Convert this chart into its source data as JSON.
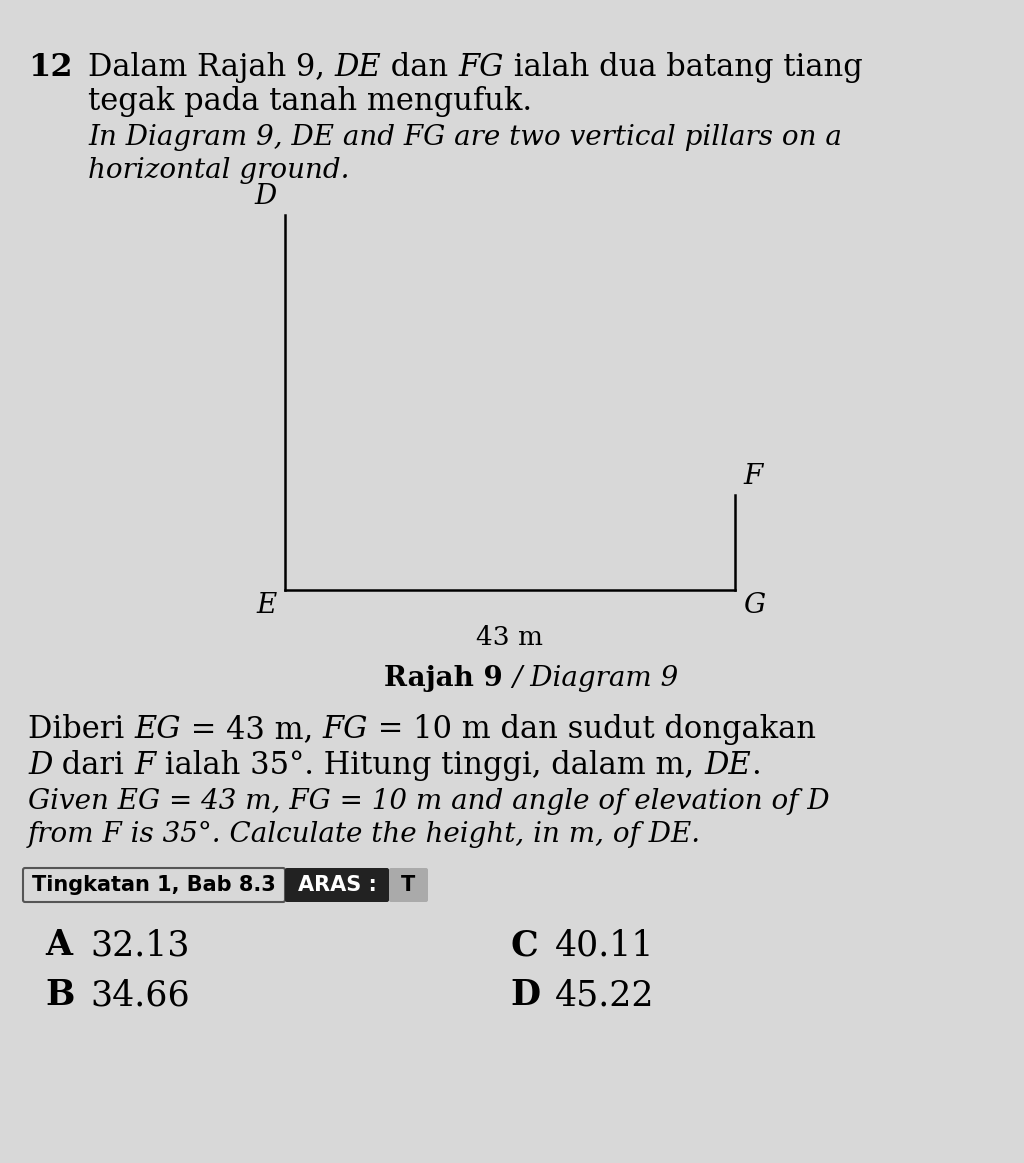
{
  "bg_color": "#d8d8d8",
  "question_number": "12",
  "line1_normal1": "Dalam Rajah 9, ",
  "line1_italic1": "DE",
  "line1_normal2": " dan ",
  "line1_italic2": "FG",
  "line1_normal3": " ialah dua batang tiang",
  "line2_normal": "tegak pada tanah mengufuk.",
  "line3_italic": "In Diagram 9, DE and FG are two vertical pillars on a",
  "line4_italic": "horizontal ground.",
  "diagram_label_D": "D",
  "diagram_label_E": "E",
  "diagram_label_F": "F",
  "diagram_label_G": "G",
  "diagram_label_43m": "43 m",
  "diagram_title": "Rajah 9",
  "diagram_title2": "/ Diagram 9",
  "given_malay_normal1": "Diberi ",
  "given_malay_italic1": "EG",
  "given_malay_normal2": " = 43 m, ",
  "given_malay_italic2": "FG",
  "given_malay_normal3": " = 10 m dan sudut dongakan",
  "given_malay_italic3": "D",
  "given_malay_normal4": " dari ",
  "given_malay_italic4": "F",
  "given_malay_normal5": " ialah 35°. Hitung tinggi, dalam m, ",
  "given_malay_italic5": "DE",
  "given_malay_normal6": ".",
  "given_eng_italic1": "Given EG = 43 m, FG = 10 m and angle of elevation of D",
  "given_eng_italic2": "from F is 35°. Calculate the height, in m, of DE.",
  "tag1_text": "Tingkatan 1, Bab 8.3",
  "tag2_text": "ARAS :",
  "tag3_text": "T",
  "opt_A_label": "A",
  "opt_A_val": "32.13",
  "opt_B_label": "B",
  "opt_B_val": "34.66",
  "opt_C_label": "C",
  "opt_C_val": "40.11",
  "opt_D_label": "D",
  "opt_D_val": "45.22",
  "tag2_bg": "#222222",
  "tag3_bg": "#aaaaaa",
  "tag1_edge": "#555555"
}
